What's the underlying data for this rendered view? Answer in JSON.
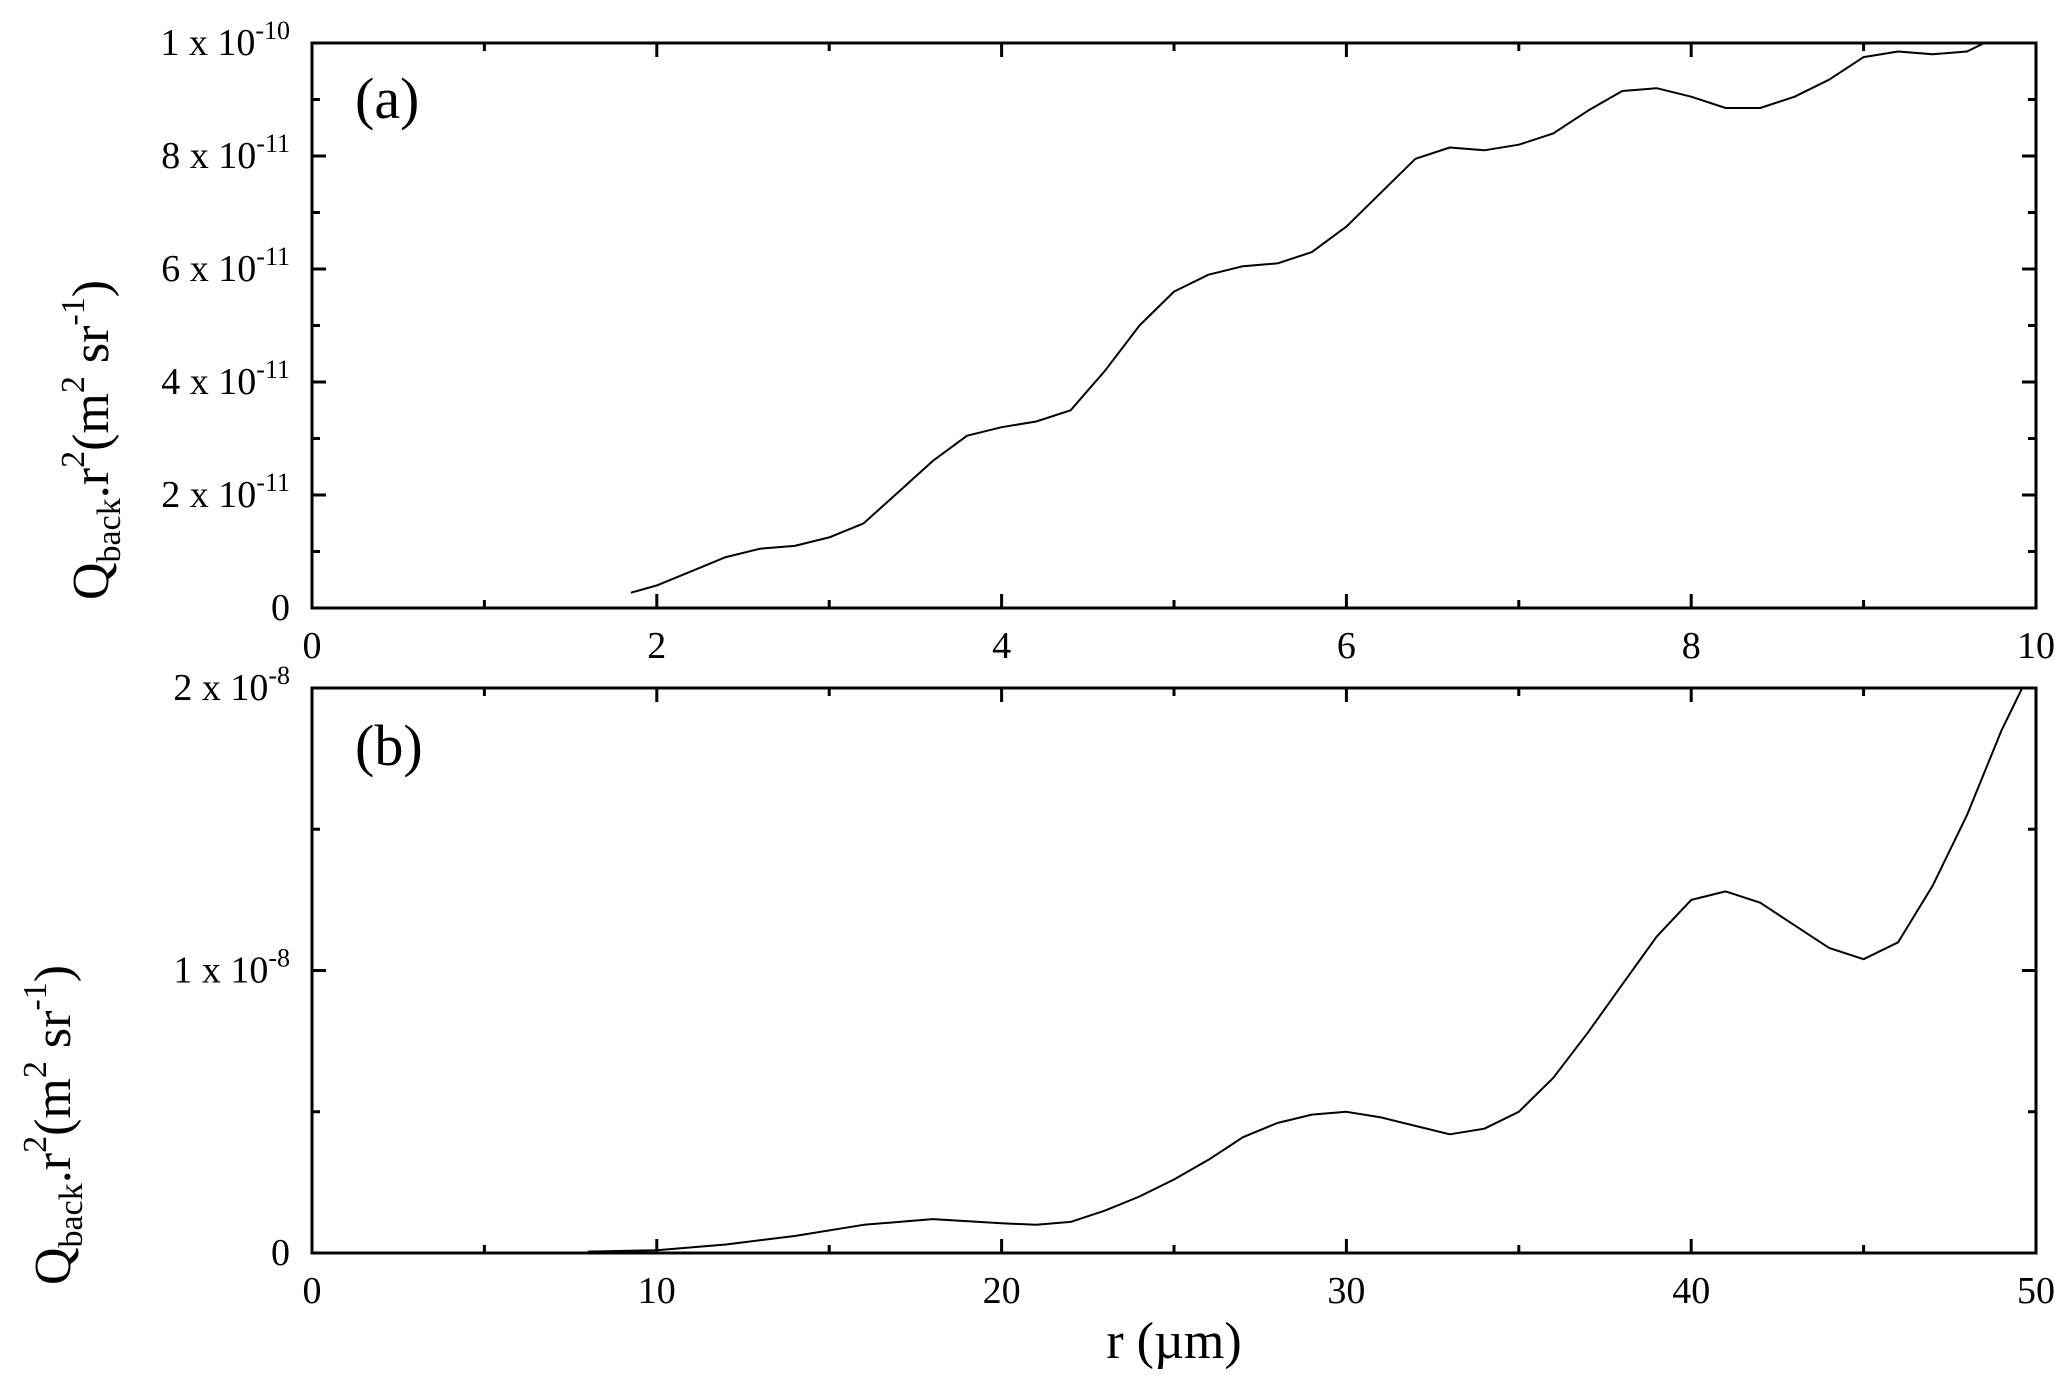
{
  "figure": {
    "chart_data": [
      {
        "type": "line",
        "panel_label": "(a)",
        "ylabel": {
          "main": "Q",
          "sub": "back",
          "rest": ".r",
          "sup": "2",
          "unit_open": "(m",
          "unit_sup1": "2",
          "unit_mid": " sr",
          "unit_sup2": "-1",
          "unit_close": ")"
        },
        "xlim": [
          0,
          10
        ],
        "ylim": [
          0,
          1e-10
        ],
        "x_ticks": [
          0,
          2,
          4,
          6,
          8,
          10
        ],
        "x_tick_labels": [
          "0",
          "2",
          "4",
          "6",
          "8",
          "10"
        ],
        "x_minor_ticks": [
          1,
          3,
          5,
          7,
          9
        ],
        "y_ticks": [
          0,
          2e-11,
          4e-11,
          6e-11,
          8e-11,
          1e-10
        ],
        "y_tick_labels": [
          {
            "mant": "0",
            "exp": ""
          },
          {
            "mant": "2 x 10",
            "exp": "-11"
          },
          {
            "mant": "4 x 10",
            "exp": "-11"
          },
          {
            "mant": "6 x 10",
            "exp": "-11"
          },
          {
            "mant": "8 x 10",
            "exp": "-11"
          },
          {
            "mant": "1 x 10",
            "exp": "-10"
          }
        ],
        "y_minor_ticks": [
          1e-11,
          3e-11,
          5e-11,
          7e-11,
          9e-11
        ],
        "grid": false,
        "legend": "none",
        "series": [
          {
            "x": [
              1.85,
              2.0,
              2.2,
              2.4,
              2.6,
              2.8,
              3.0,
              3.2,
              3.4,
              3.6,
              3.8,
              4.0,
              4.2,
              4.4,
              4.6,
              4.8,
              5.0,
              5.2,
              5.4,
              5.6,
              5.8,
              6.0,
              6.2,
              6.4,
              6.6,
              6.8,
              7.0,
              7.2,
              7.4,
              7.6,
              7.8,
              8.0,
              8.2,
              8.4,
              8.6,
              8.8,
              9.0,
              9.2,
              9.4,
              9.6,
              9.7
            ],
            "y": [
              2.7e-12,
              4e-12,
              6.5e-12,
              9e-12,
              1.05e-11,
              1.1e-11,
              1.25e-11,
              1.5e-11,
              2.05e-11,
              2.6e-11,
              3.05e-11,
              3.2e-11,
              3.3e-11,
              3.5e-11,
              4.2e-11,
              5e-11,
              5.6e-11,
              5.9e-11,
              6.05e-11,
              6.1e-11,
              6.3e-11,
              6.75e-11,
              7.35e-11,
              7.95e-11,
              8.15e-11,
              8.1e-11,
              8.2e-11,
              8.4e-11,
              8.8e-11,
              9.15e-11,
              9.2e-11,
              9.05e-11,
              8.85e-11,
              8.85e-11,
              9.05e-11,
              9.35e-11,
              9.75e-11,
              9.85e-11,
              9.8e-11,
              9.85e-11,
              1e-10
            ]
          }
        ]
      },
      {
        "type": "line",
        "panel_label": "(b)",
        "ylabel": {
          "main": "Q",
          "sub": "back",
          "rest": ".r",
          "sup": "2",
          "unit_open": "(m",
          "unit_sup1": "2",
          "unit_mid": " sr",
          "unit_sup2": "-1",
          "unit_close": ")"
        },
        "xlabel": "r (µm)",
        "xlim": [
          0,
          50
        ],
        "ylim": [
          0,
          2e-08
        ],
        "x_ticks": [
          0,
          10,
          20,
          30,
          40,
          50
        ],
        "x_tick_labels": [
          "0",
          "10",
          "20",
          "30",
          "40",
          "50"
        ],
        "x_minor_ticks": [
          5,
          15,
          25,
          35,
          45
        ],
        "y_ticks": [
          0,
          1e-08,
          2e-08
        ],
        "y_tick_labels": [
          {
            "mant": "0",
            "exp": ""
          },
          {
            "mant": "1 x 10",
            "exp": "-8"
          },
          {
            "mant": "2 x 10",
            "exp": "-8"
          }
        ],
        "y_minor_ticks": [
          5e-09,
          1.5e-08
        ],
        "grid": false,
        "legend": "none",
        "series": [
          {
            "x": [
              8,
              10,
              12,
              14,
              16,
              18,
              20,
              21,
              22,
              23,
              24,
              25,
              26,
              27,
              28,
              29,
              30,
              31,
              32,
              33,
              34,
              35,
              36,
              37,
              38,
              39,
              40,
              41,
              42,
              43,
              44,
              45,
              46,
              47,
              48,
              49,
              49.6
            ],
            "y": [
              5e-11,
              1e-10,
              3e-10,
              6e-10,
              1e-09,
              1.2e-09,
              1.05e-09,
              1e-09,
              1.1e-09,
              1.5e-09,
              2e-09,
              2.6e-09,
              3.3e-09,
              4.1e-09,
              4.6e-09,
              4.9e-09,
              5e-09,
              4.8e-09,
              4.5e-09,
              4.2e-09,
              4.4e-09,
              5e-09,
              6.2e-09,
              7.8e-09,
              9.5e-09,
              1.12e-08,
              1.25e-08,
              1.28e-08,
              1.24e-08,
              1.16e-08,
              1.08e-08,
              1.04e-08,
              1.1e-08,
              1.3e-08,
              1.55e-08,
              1.85e-08,
              2e-08
            ]
          }
        ]
      }
    ]
  }
}
